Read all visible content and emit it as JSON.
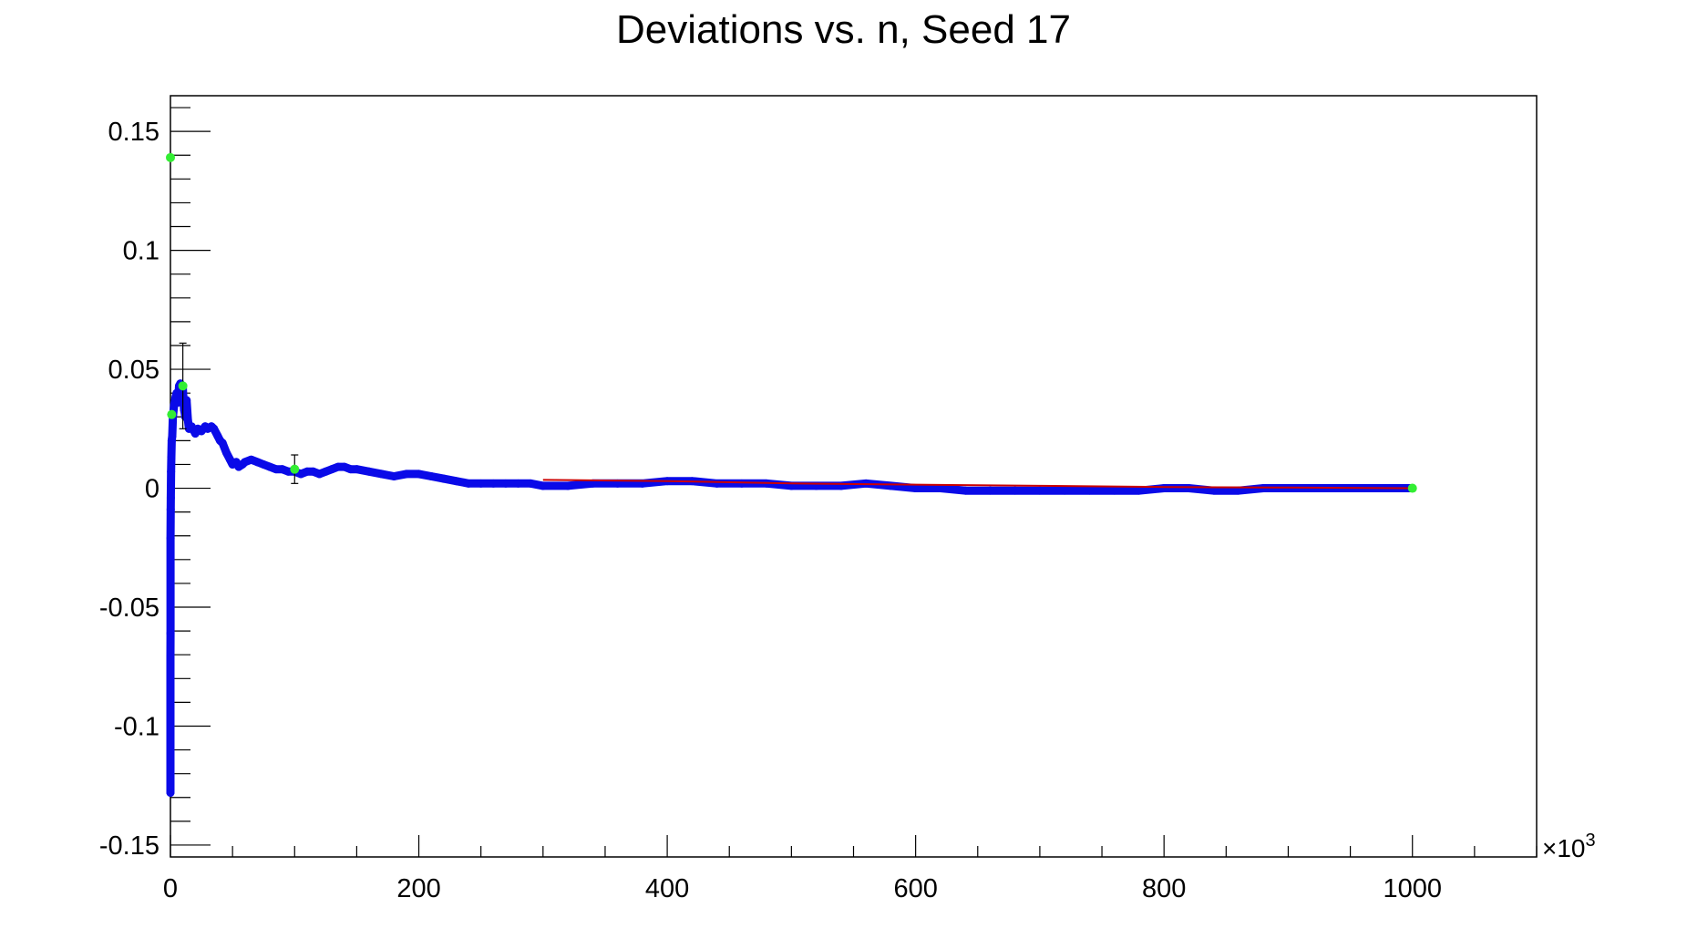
{
  "chart_data": {
    "type": "scatter",
    "title": "Deviations vs. n, Seed 17",
    "xlabel": "",
    "ylabel": "",
    "x_multiplier_label": "×10",
    "x_multiplier_exponent": "3",
    "xlim": [
      0,
      1100
    ],
    "ylim": [
      -0.155,
      0.165
    ],
    "x_ticks": [
      "0",
      "200",
      "400",
      "600",
      "800",
      "1000"
    ],
    "x_tick_values": [
      0,
      200,
      400,
      600,
      800,
      1000
    ],
    "y_ticks": [
      "0.15",
      "0.1",
      "0.05",
      "0",
      "-0.05",
      "-0.1",
      "-0.15"
    ],
    "y_tick_values": [
      0.15,
      0.1,
      0.05,
      0,
      -0.05,
      -0.1,
      -0.15
    ],
    "grid": false,
    "colors": {
      "main_series": "#0a0ae8",
      "highlight": "#33ee33",
      "fit_line": "#cc0000",
      "axis": "#000000"
    },
    "series": [
      {
        "role": "main",
        "marker": "circle",
        "color": "#0a0ae8",
        "x": [
          0.01,
          0.02,
          0.05,
          0.1,
          0.2,
          0.3,
          0.5,
          0.7,
          1,
          1.5,
          2,
          3,
          4,
          5,
          6,
          7,
          8,
          9,
          10,
          11,
          12,
          13,
          14,
          15,
          17,
          20,
          22,
          25,
          28,
          30,
          33,
          35,
          38,
          40,
          42,
          45,
          48,
          50,
          53,
          55,
          58,
          60,
          65,
          70,
          75,
          80,
          85,
          90,
          95,
          100,
          105,
          110,
          115,
          120,
          125,
          130,
          135,
          140,
          145,
          150,
          160,
          170,
          180,
          190,
          200,
          210,
          220,
          230,
          240,
          250,
          260,
          270,
          280,
          290,
          300,
          320,
          340,
          360,
          380,
          400,
          420,
          440,
          460,
          480,
          500,
          520,
          540,
          560,
          580,
          600,
          620,
          640,
          660,
          680,
          700,
          720,
          740,
          760,
          780,
          800,
          820,
          840,
          860,
          880,
          900,
          920,
          940,
          960,
          980,
          1000
        ],
        "y": [
          -0.128,
          -0.071,
          -0.061,
          -0.021,
          -0.009,
          -0.004,
          0.007,
          0.013,
          0.02,
          0.022,
          0.03,
          0.035,
          0.038,
          0.04,
          0.036,
          0.043,
          0.044,
          0.041,
          0.042,
          0.033,
          0.03,
          0.037,
          0.029,
          0.025,
          0.026,
          0.023,
          0.025,
          0.024,
          0.026,
          0.025,
          0.026,
          0.025,
          0.022,
          0.02,
          0.019,
          0.015,
          0.012,
          0.01,
          0.011,
          0.009,
          0.01,
          0.011,
          0.012,
          0.011,
          0.01,
          0.009,
          0.008,
          0.008,
          0.007,
          0.007,
          0.006,
          0.007,
          0.007,
          0.006,
          0.007,
          0.008,
          0.009,
          0.009,
          0.008,
          0.008,
          0.007,
          0.006,
          0.005,
          0.006,
          0.006,
          0.005,
          0.004,
          0.003,
          0.002,
          0.002,
          0.002,
          0.002,
          0.002,
          0.002,
          0.001,
          0.001,
          0.002,
          0.002,
          0.002,
          0.003,
          0.003,
          0.002,
          0.002,
          0.002,
          0.001,
          0.001,
          0.001,
          0.002,
          0.001,
          0.0,
          0.0,
          -0.001,
          -0.001,
          -0.001,
          -0.001,
          -0.001,
          -0.001,
          -0.001,
          -0.001,
          0.0,
          0.0,
          -0.001,
          -0.001,
          0.0,
          0.0,
          0.0,
          0.0,
          0.0,
          0.0,
          0.0
        ]
      },
      {
        "role": "highlight",
        "marker": "circle",
        "color": "#33ee33",
        "x": [
          0.01,
          1,
          10,
          100,
          1000
        ],
        "y": [
          0.139,
          0.031,
          0.043,
          0.008,
          0.0
        ],
        "err": [
          0.0,
          0.0,
          0.018,
          0.006,
          0.0
        ]
      },
      {
        "role": "fit",
        "marker": "line",
        "color": "#cc0000",
        "x": [
          300,
          400,
          500,
          600,
          700,
          800,
          900,
          1000
        ],
        "y": [
          0.0035,
          0.003,
          0.002,
          0.0015,
          0.001,
          0.0005,
          0.0003,
          0.0
        ]
      }
    ]
  }
}
